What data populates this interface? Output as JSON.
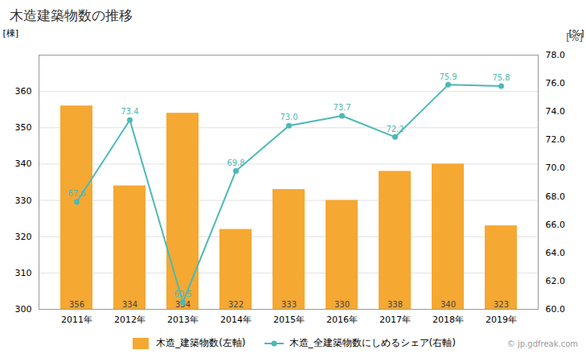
{
  "chart_data": {
    "type": "bar_line",
    "title": "木造建築物数の推移",
    "categories": [
      "2011年",
      "2012年",
      "2013年",
      "2014年",
      "2015年",
      "2016年",
      "2017年",
      "2018年",
      "2019年"
    ],
    "series": [
      {
        "name": "木造_建築物数(左軸)",
        "type": "bar",
        "color": "#F5A832",
        "values": [
          356,
          334,
          354,
          322,
          333,
          330,
          338,
          340,
          323
        ]
      },
      {
        "name": "木造_全建築物数にしめるシェア(右軸)",
        "type": "line",
        "axis": "y2",
        "color": "#4DB8B8",
        "marker": "o",
        "values": [
          67.6,
          73.4,
          60.5,
          69.8,
          73.0,
          73.7,
          72.2,
          75.9,
          75.8
        ],
        "value_labels": [
          "67.6",
          "73.4",
          "60.5",
          "69.8",
          "73.0",
          "73.7",
          "72.2",
          "75.9",
          "75.8"
        ]
      }
    ],
    "ylabel": "[棟]",
    "y2label": "[%]",
    "annotations": [
      "[%]",
      "© jp.gdfreak.com"
    ],
    "ylim": [
      300,
      370
    ],
    "yticks": [
      300,
      310,
      320,
      330,
      340,
      350,
      360
    ],
    "y2lim": [
      60.0,
      78.0
    ],
    "y2ticks": [
      {
        "value": 60,
        "label": "60.0"
      },
      {
        "value": 62,
        "label": "62.0"
      },
      {
        "value": 64,
        "label": "64.0"
      },
      {
        "value": 66,
        "label": "66.0"
      },
      {
        "value": 68,
        "label": "68.0"
      },
      {
        "value": 70,
        "label": "70.0"
      },
      {
        "value": 72,
        "label": "72.0"
      },
      {
        "value": 74,
        "label": "74.0"
      },
      {
        "value": 76,
        "label": "76.0"
      },
      {
        "value": 78,
        "label": "78.0"
      }
    ],
    "grid": true,
    "data_labels": true,
    "legend": "bottom"
  }
}
